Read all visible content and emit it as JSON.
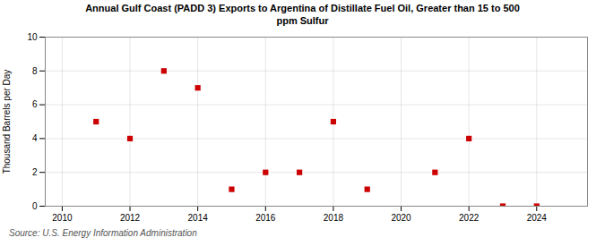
{
  "chart_data": {
    "type": "scatter",
    "title": "Annual Gulf Coast (PADD 3) Exports to Argentina of Distillate Fuel Oil, Greater than 15 to 500\nppm Sulfur",
    "ylabel": "Thousand Barrels per Day",
    "source": "Source: U.S. Energy Information Administration",
    "x": [
      2011,
      2012,
      2013,
      2014,
      2015,
      2016,
      2017,
      2018,
      2019,
      2021,
      2022,
      2023,
      2024
    ],
    "values": [
      5,
      4,
      8,
      7,
      1,
      2,
      2,
      5,
      1,
      2,
      4,
      0.0,
      0.0
    ],
    "color": "#cc0000",
    "marker": "square",
    "xlim": [
      2009.5,
      2025.5
    ],
    "ylim": [
      0,
      10
    ],
    "xticks": [
      2010,
      2012,
      2014,
      2016,
      2018,
      2020,
      2022,
      2024
    ],
    "yticks": [
      0,
      2,
      4,
      6,
      8,
      10
    ],
    "grid": true
  }
}
